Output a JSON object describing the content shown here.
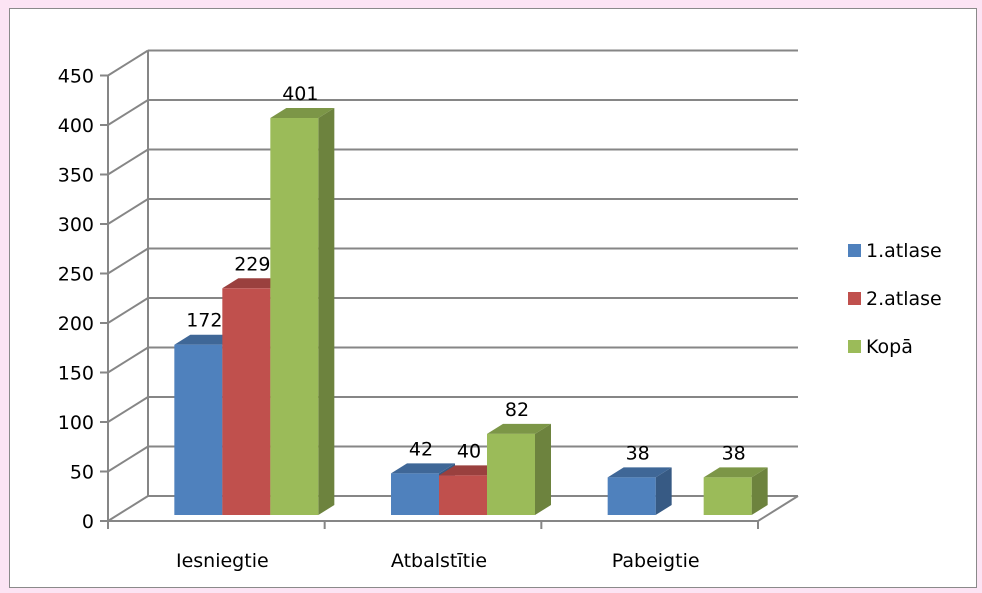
{
  "chart_data": {
    "type": "bar",
    "categories": [
      "Iesniegtie",
      "Atbalstītie",
      "Pabeigtie"
    ],
    "series": [
      {
        "name": "1.atlase",
        "values": [
          172,
          42,
          38
        ],
        "color": "#4f81bd"
      },
      {
        "name": "2.atlase",
        "values": [
          229,
          40,
          null
        ],
        "color": "#c0504d"
      },
      {
        "name": "Kopā",
        "values": [
          401,
          82,
          38
        ],
        "color": "#9bbb59"
      }
    ],
    "ylim": [
      0,
      450
    ],
    "yticks": [
      0,
      50,
      100,
      150,
      200,
      250,
      300,
      350,
      400,
      450
    ],
    "grid": true,
    "style": "3d-clustered-column",
    "legend_position": "right",
    "data_labels": true
  }
}
